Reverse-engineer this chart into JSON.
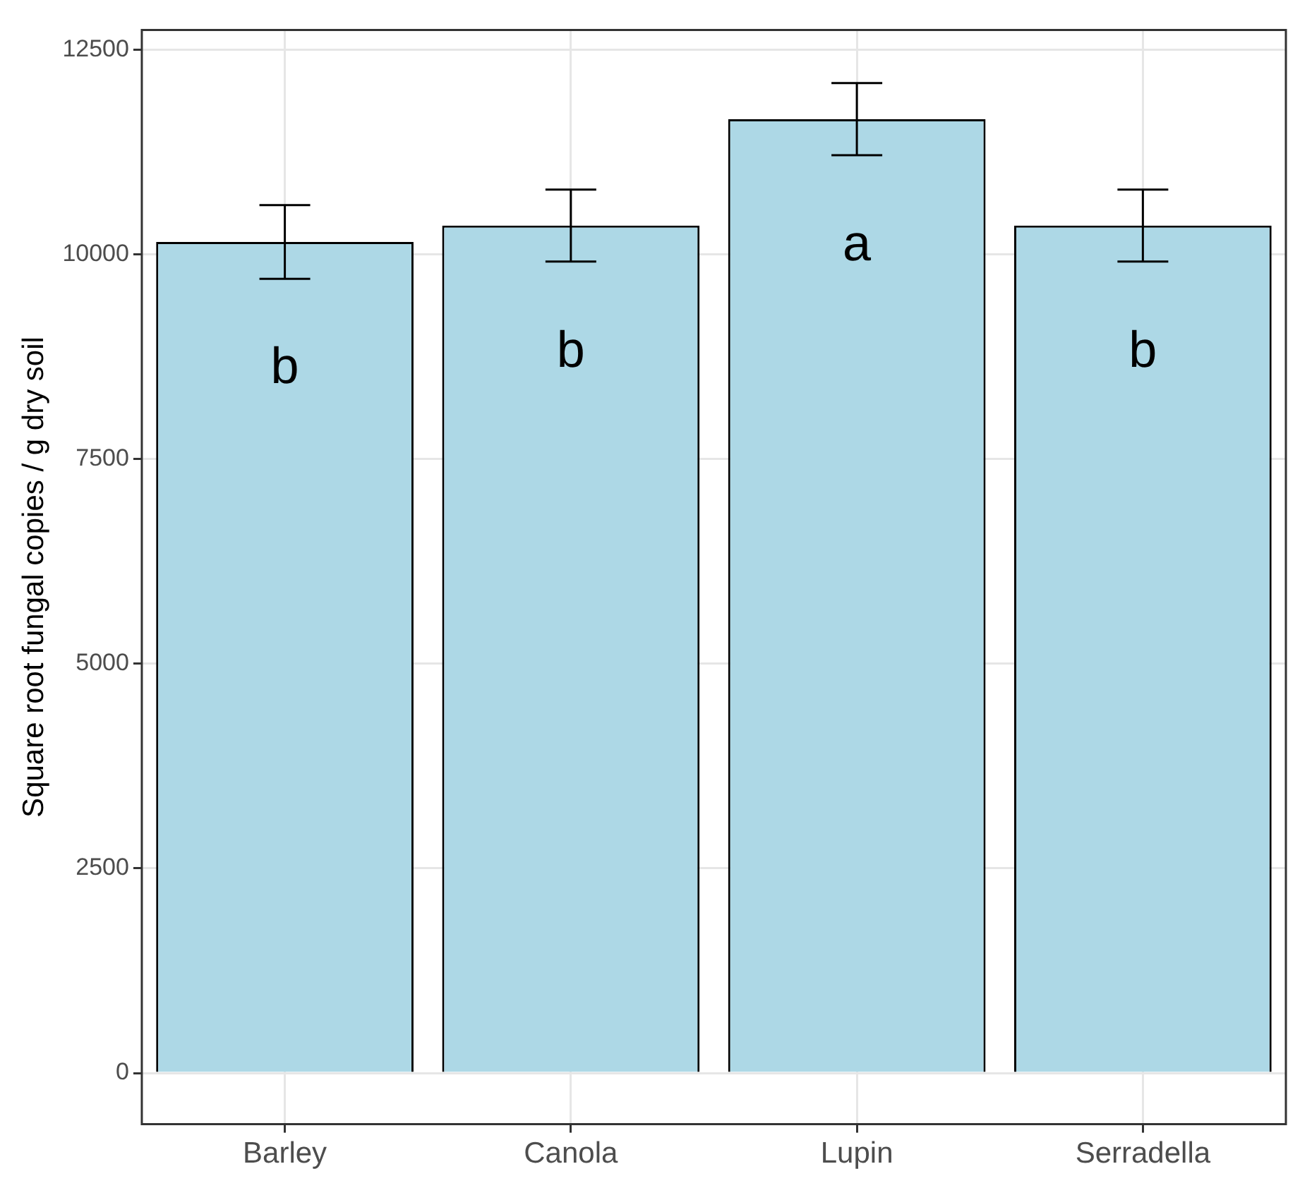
{
  "chart_data": {
    "type": "bar",
    "ylabel": "Square root fungal copies / g dry soil",
    "categories": [
      "Barley",
      "Canola",
      "Lupin",
      "Serradella"
    ],
    "values": [
      10150,
      10350,
      11650,
      10350
    ],
    "errors": [
      450,
      440,
      440,
      440
    ],
    "color": "#add8e6",
    "ylim": [
      -625,
      12740
    ],
    "yticks": [
      0,
      2500,
      5000,
      7500,
      10000,
      12500
    ],
    "grid": true,
    "legend": false,
    "annotations": [
      "b",
      "b",
      "a",
      "b"
    ]
  }
}
